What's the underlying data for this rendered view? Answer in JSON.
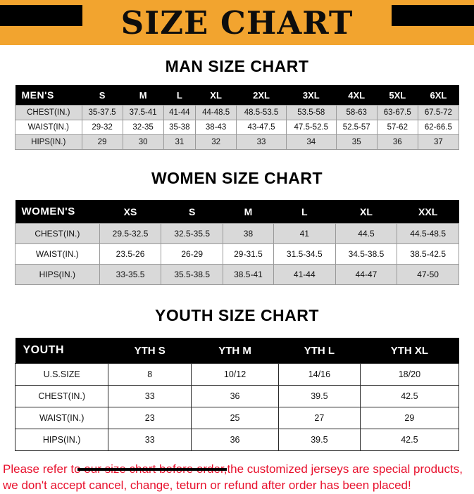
{
  "banner": {
    "title": "SIZE CHART"
  },
  "sections": [
    {
      "heading": "MAN SIZE CHART",
      "table": {
        "name": "mens",
        "header": [
          "MEN'S",
          "S",
          "M",
          "L",
          "XL",
          "2XL",
          "3XL",
          "4XL",
          "5XL",
          "6XL"
        ],
        "rows": [
          [
            "CHEST(IN.)",
            "35-37.5",
            "37.5-41",
            "41-44",
            "44-48.5",
            "48.5-53.5",
            "53.5-58",
            "58-63",
            "63-67.5",
            "67.5-72"
          ],
          [
            "WAIST(IN.)",
            "29-32",
            "32-35",
            "35-38",
            "38-43",
            "43-47.5",
            "47.5-52.5",
            "52.5-57",
            "57-62",
            "62-66.5"
          ],
          [
            "HIPS(IN.)",
            "29",
            "30",
            "31",
            "32",
            "33",
            "34",
            "35",
            "36",
            "37"
          ]
        ]
      }
    },
    {
      "heading": "WOMEN SIZE CHART",
      "table": {
        "name": "women",
        "header": [
          "WOMEN'S",
          "XS",
          "S",
          "M",
          "L",
          "XL",
          "XXL"
        ],
        "rows": [
          [
            "CHEST(IN.)",
            "29.5-32.5",
            "32.5-35.5",
            "38",
            "41",
            "44.5",
            "44.5-48.5"
          ],
          [
            "WAIST(IN.)",
            "23.5-26",
            "26-29",
            "29-31.5",
            "31.5-34.5",
            "34.5-38.5",
            "38.5-42.5"
          ],
          [
            "HIPS(IN.)",
            "33-35.5",
            "35.5-38.5",
            "38.5-41",
            "41-44",
            "44-47",
            "47-50"
          ]
        ]
      }
    },
    {
      "heading": "YOUTH SIZE CHART",
      "table": {
        "name": "youth",
        "header": [
          "YOUTH",
          "YTH S",
          "YTH M",
          "YTH L",
          "YTH XL"
        ],
        "rows": [
          [
            "U.S.SIZE",
            "8",
            "10/12",
            "14/16",
            "18/20"
          ],
          [
            "CHEST(IN.)",
            "33",
            "36",
            "39.5",
            "42.5"
          ],
          [
            "WAIST(IN.)",
            "23",
            "25",
            "27",
            "29"
          ],
          [
            "HIPS(IN.)",
            "33",
            "36",
            "39.5",
            "42.5"
          ]
        ]
      }
    }
  ],
  "footer": {
    "line1": "Please refer to our size chart before order,the customized jerseys are special products,",
    "line2": "we don't accept cancel, change, teturn or refund after order has been placed!"
  },
  "colors": {
    "banner_bg": "#F2A42F",
    "table_header_bg": "#000000",
    "stripe_row": "#D9D9D9",
    "footer_text": "#E8112D"
  }
}
